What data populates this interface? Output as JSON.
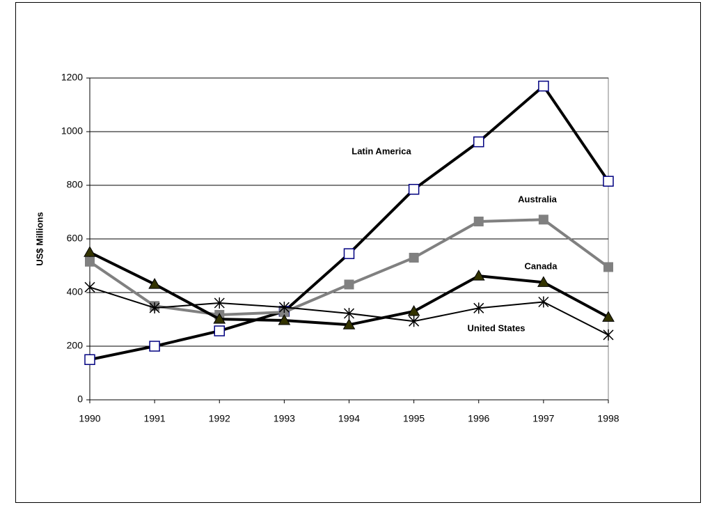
{
  "chart_data": {
    "type": "line",
    "y_label": "US$ Millions",
    "categories": [
      "1990",
      "1991",
      "1992",
      "1993",
      "1994",
      "1995",
      "1996",
      "1997",
      "1998"
    ],
    "series": [
      {
        "name": "Latin America",
        "color": "#000000",
        "marker": "open-square",
        "values": [
          150,
          200,
          257,
          330,
          545,
          785,
          962,
          1170,
          815
        ]
      },
      {
        "name": "Australia",
        "color": "#808080",
        "marker": "square",
        "values": [
          515,
          350,
          317,
          327,
          430,
          530,
          665,
          672,
          495
        ]
      },
      {
        "name": "Canada",
        "color": "#000000",
        "marker": "triangle",
        "values": [
          550,
          431,
          301,
          296,
          280,
          330,
          462,
          438,
          308
        ]
      },
      {
        "name": "United States",
        "color": "#000000",
        "marker": "star",
        "values": [
          420,
          343,
          361,
          345,
          322,
          293,
          342,
          365,
          242
        ]
      }
    ],
    "ylim": [
      0,
      1200
    ],
    "yticks": [
      0,
      200,
      400,
      600,
      800,
      1000,
      1200
    ],
    "grid": true
  }
}
